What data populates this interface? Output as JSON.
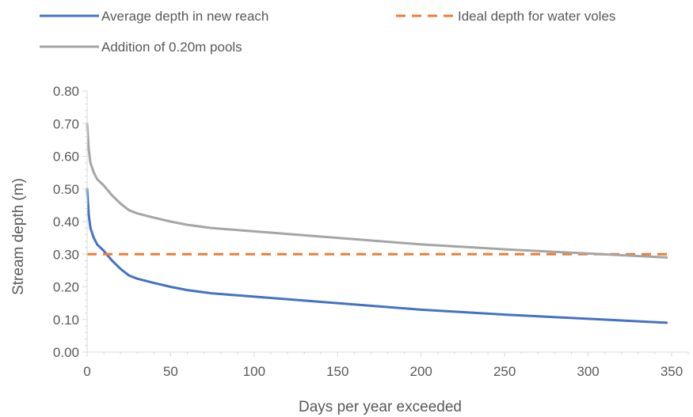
{
  "chart_data": {
    "type": "line",
    "xlabel": "Days per year exceeded",
    "ylabel": "Stream depth (m)",
    "xlim": [
      0,
      350
    ],
    "ylim": [
      0,
      0.8
    ],
    "x_ticks": [
      0,
      50,
      100,
      150,
      200,
      250,
      300,
      350
    ],
    "y_ticks": [
      0.0,
      0.1,
      0.2,
      0.3,
      0.4,
      0.5,
      0.6,
      0.7,
      0.8
    ],
    "grid": false,
    "legend_position": "top",
    "series": [
      {
        "name": "Average depth in new reach",
        "color": "#4472C4",
        "style": "solid",
        "x": [
          0,
          1,
          2,
          4,
          6,
          10,
          15,
          20,
          25,
          30,
          40,
          50,
          60,
          75,
          100,
          125,
          150,
          175,
          200,
          250,
          300,
          347
        ],
        "y": [
          0.5,
          0.42,
          0.38,
          0.35,
          0.33,
          0.31,
          0.28,
          0.255,
          0.235,
          0.225,
          0.212,
          0.2,
          0.19,
          0.18,
          0.17,
          0.16,
          0.15,
          0.14,
          0.13,
          0.115,
          0.102,
          0.09
        ]
      },
      {
        "name": "Ideal depth for water voles",
        "color": "#ED7D31",
        "style": "dashed",
        "x": [
          0,
          350
        ],
        "y": [
          0.3,
          0.3
        ]
      },
      {
        "name": "Addition of 0.20m pools",
        "color": "#A5A5A5",
        "style": "solid",
        "x": [
          0,
          1,
          2,
          4,
          6,
          10,
          15,
          20,
          25,
          30,
          40,
          50,
          60,
          75,
          100,
          125,
          150,
          175,
          200,
          250,
          300,
          347
        ],
        "y": [
          0.7,
          0.62,
          0.58,
          0.55,
          0.53,
          0.51,
          0.48,
          0.455,
          0.435,
          0.425,
          0.412,
          0.4,
          0.39,
          0.38,
          0.37,
          0.36,
          0.35,
          0.34,
          0.33,
          0.315,
          0.302,
          0.29
        ]
      }
    ]
  }
}
